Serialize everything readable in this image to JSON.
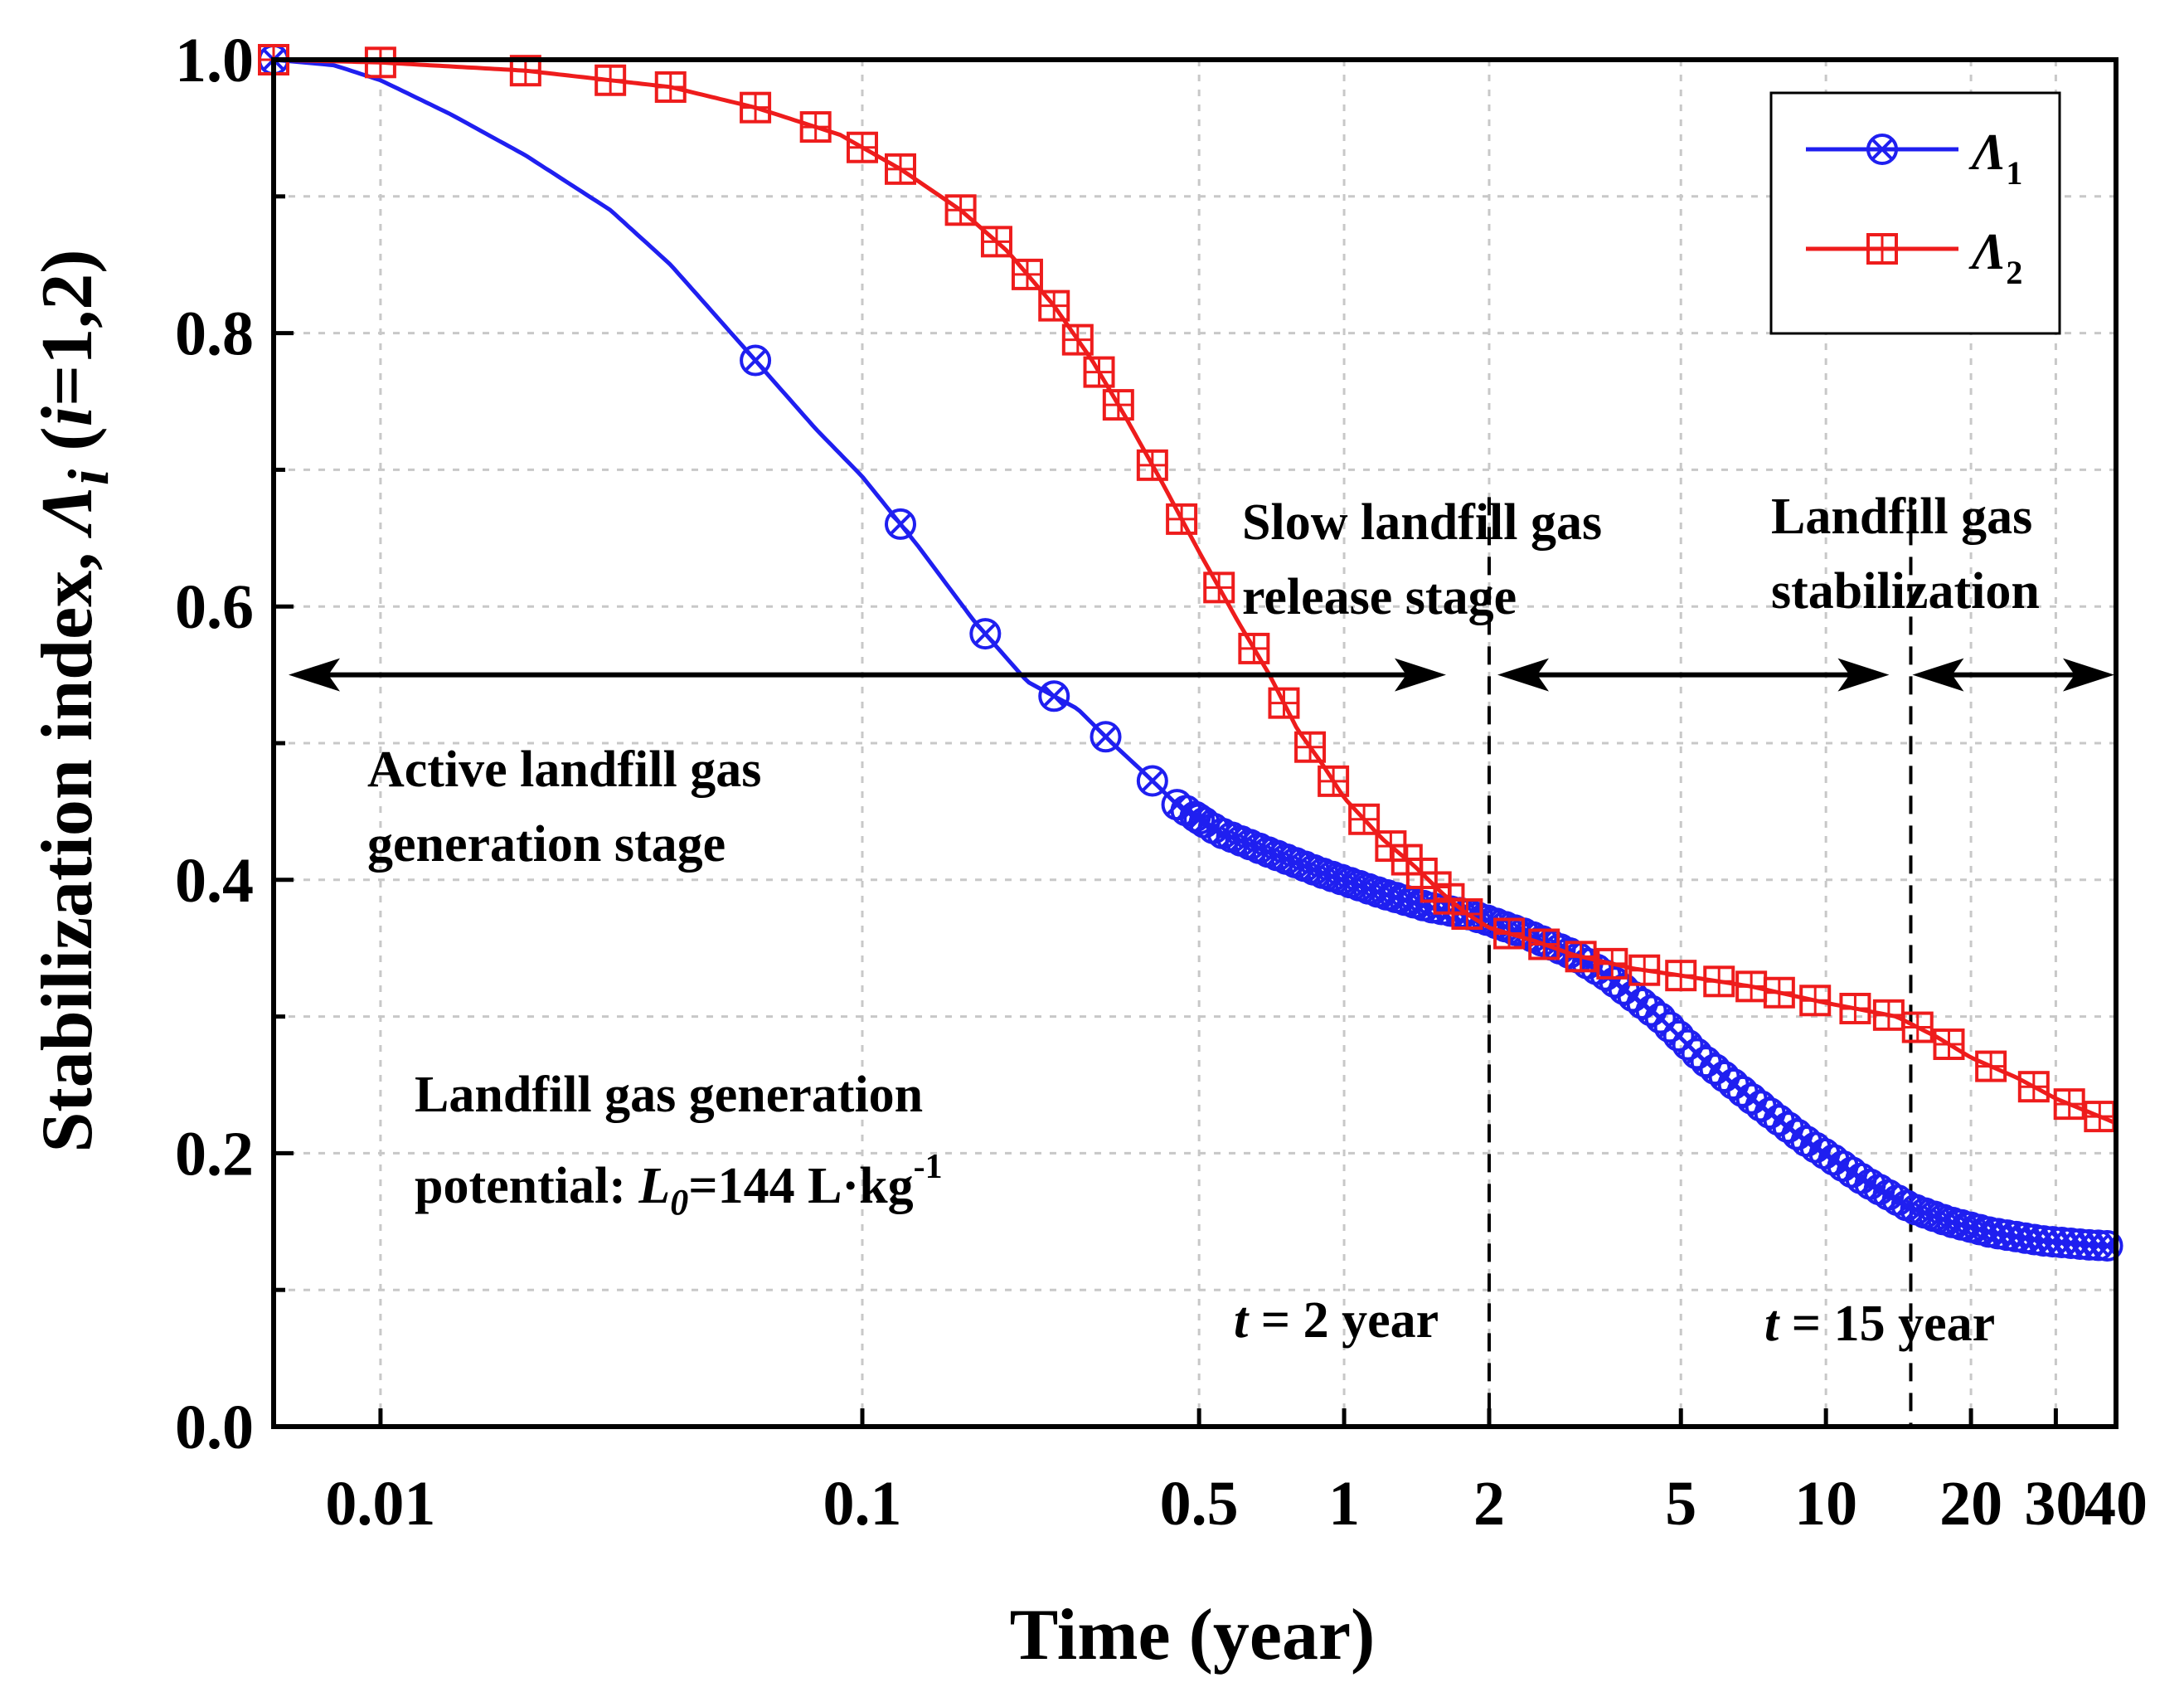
{
  "chart_data": {
    "type": "line",
    "xscale": "log",
    "xlim": [
      0.006,
      40
    ],
    "ylim": [
      0,
      1
    ],
    "xlabel": "Time (year)",
    "ylabel": {
      "main": "Stabilization index, ",
      "symbol": "Λ",
      "symbol_sub": "i",
      "paren_open": " (",
      "paren_var": "i",
      "paren_rest": "=1,2)"
    },
    "x_ticks": [
      {
        "value": 0.01,
        "label": "0.01"
      },
      {
        "value": 0.1,
        "label": "0.1"
      },
      {
        "value": 0.5,
        "label": "0.5"
      },
      {
        "value": 1,
        "label": "1"
      },
      {
        "value": 2,
        "label": "2"
      },
      {
        "value": 5,
        "label": "5"
      },
      {
        "value": 10,
        "label": "10"
      },
      {
        "value": 20,
        "label": "20"
      },
      {
        "value": 30,
        "label": "30"
      },
      {
        "value": 40,
        "label": "40"
      }
    ],
    "y_ticks": [
      {
        "value": 0.0,
        "label": "0.0"
      },
      {
        "value": 0.2,
        "label": "0.2"
      },
      {
        "value": 0.4,
        "label": "0.4"
      },
      {
        "value": 0.6,
        "label": "0.6"
      },
      {
        "value": 0.8,
        "label": "0.8"
      },
      {
        "value": 1.0,
        "label": "1.0"
      }
    ],
    "grid": true,
    "legend_position": "top-right",
    "series": [
      {
        "name": "Λ1",
        "legend_symbol": "Λ",
        "legend_sub": "1",
        "color": "#1f1ff0",
        "marker": "circle-x",
        "x": [
          0.006,
          0.008,
          0.01,
          0.014,
          0.02,
          0.03,
          0.04,
          0.06,
          0.08,
          0.1,
          0.13,
          0.17,
          0.22,
          0.28,
          0.33,
          0.38,
          0.45,
          0.55,
          0.7,
          0.9,
          1.2,
          1.5,
          1.8,
          2.0,
          2.4,
          3.0,
          3.5,
          4.5,
          5.5,
          7,
          9,
          12,
          15,
          18,
          22,
          28,
          35,
          40
        ],
        "y": [
          1.0,
          0.996,
          0.985,
          0.96,
          0.93,
          0.89,
          0.85,
          0.78,
          0.73,
          0.695,
          0.645,
          0.59,
          0.545,
          0.525,
          0.5,
          0.48,
          0.455,
          0.435,
          0.42,
          0.405,
          0.39,
          0.38,
          0.375,
          0.37,
          0.36,
          0.345,
          0.33,
          0.3,
          0.27,
          0.24,
          0.21,
          0.18,
          0.16,
          0.15,
          0.142,
          0.136,
          0.133,
          0.132
        ],
        "marker_x": [
          0.006,
          0.06,
          0.12,
          0.18,
          0.25,
          0.32,
          0.4,
          0.5
        ],
        "dense_from": 0.45
      },
      {
        "name": "Λ2",
        "legend_symbol": "Λ",
        "legend_sub": "2",
        "color": "#ee1c1c",
        "marker": "square-plus",
        "x": [
          0.006,
          0.01,
          0.02,
          0.04,
          0.06,
          0.09,
          0.12,
          0.16,
          0.2,
          0.25,
          0.3,
          0.35,
          0.42,
          0.5,
          0.6,
          0.7,
          0.8,
          0.9,
          1.0,
          1.2,
          1.4,
          1.6,
          1.8,
          2.0,
          2.5,
          3.0,
          4.0,
          5.0,
          7.0,
          10,
          14,
          17,
          20,
          25,
          30,
          40
        ],
        "y": [
          1.0,
          0.998,
          0.992,
          0.98,
          0.965,
          0.945,
          0.92,
          0.89,
          0.86,
          0.82,
          0.78,
          0.74,
          0.69,
          0.64,
          0.59,
          0.55,
          0.51,
          0.485,
          0.46,
          0.43,
          0.41,
          0.39,
          0.375,
          0.365,
          0.355,
          0.345,
          0.335,
          0.33,
          0.322,
          0.31,
          0.3,
          0.285,
          0.27,
          0.255,
          0.24,
          0.222
        ],
        "marker_x": [
          0.006,
          0.01,
          0.02,
          0.03,
          0.04,
          0.06,
          0.08,
          0.1,
          0.12,
          0.16,
          0.19,
          0.22,
          0.25,
          0.28,
          0.31,
          0.34,
          0.4,
          0.46,
          0.55,
          0.65,
          0.75,
          0.85,
          0.95,
          1.1,
          1.25,
          1.35,
          1.45,
          1.55,
          1.65,
          1.8,
          2.2,
          2.6,
          3.1,
          3.6,
          4.2,
          5.0,
          6.0,
          7.0,
          8.0,
          9.5,
          11.5,
          13.5,
          15.5,
          18,
          22,
          27,
          32,
          37
        ]
      }
    ],
    "annotations": {
      "stage1_line1": "Active landfill gas",
      "stage1_line2": "generation stage",
      "stage2_line1": "Slow landfill gas",
      "stage2_line2": "release stage",
      "stage3_line1": "Landfill gas",
      "stage3_line2": "stabilization",
      "potential_line1": "Landfill gas generation",
      "potential_prefix": "potential: ",
      "potential_var": "L",
      "potential_var_sub": "0",
      "potential_value": "=144 L·kg",
      "potential_exp": "-1",
      "t2_var": "t",
      "t2_text": " = 2 year",
      "t15_var": "t",
      "t15_text": " = 15 year"
    },
    "boundaries": [
      2.0,
      15.0
    ],
    "stage_arrow_y": 0.55
  }
}
